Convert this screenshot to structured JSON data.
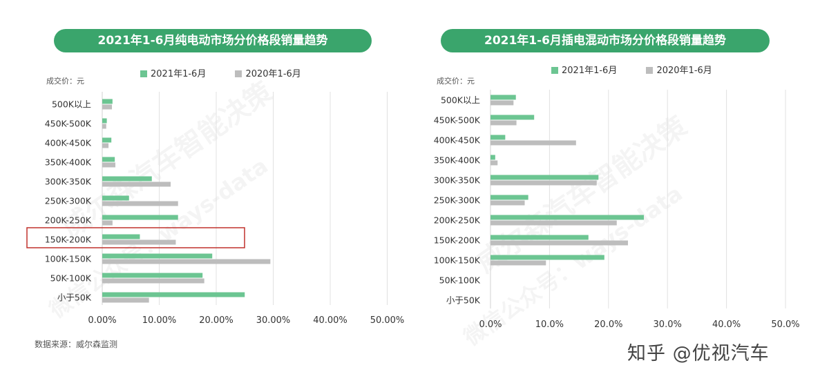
{
  "colors": {
    "accent": "#3aa56c",
    "series_2021": "#6cc592",
    "series_2020": "#bdbdbd",
    "highlight": "#c0302b",
    "grid": "#e0e0e0"
  },
  "charts": [
    {
      "title": "2021年1-6月纯电动市场分价格段销量趋势",
      "legend": [
        "2021年1-6月",
        "2020年1-6月"
      ],
      "unit_label": "成交价：元"
    },
    {
      "title": "2021年1-6月插电混动市场分价格段销量趋势",
      "legend": [
        "2021年1-6月",
        "2020年1-6月"
      ],
      "unit_label": "成交价：元"
    }
  ],
  "source": "数据来源：威尔森监测",
  "brand": "知乎 @优视汽车",
  "watermarks": [
    "威尔森汽车智能决策",
    "微信公众号：ways-data"
  ],
  "chart_data": [
    {
      "type": "bar",
      "orientation": "horizontal",
      "title": "2021年1-6月纯电动市场分价格段销量趋势",
      "ylabel": "成交价：元",
      "categories": [
        "500K以上",
        "450K-500K",
        "400K-450K",
        "350K-400K",
        "300K-350K",
        "250K-300K",
        "200K-250K",
        "150K-200K",
        "100K-150K",
        "50K-100K",
        "小于50K"
      ],
      "series": [
        {
          "name": "2021年1-6月",
          "color": "#6cc592",
          "values": [
            1.8,
            0.8,
            1.6,
            2.2,
            8.7,
            4.7,
            13.3,
            6.6,
            19.3,
            17.6,
            25.0
          ]
        },
        {
          "name": "2020年1-6月",
          "color": "#bdbdbd",
          "values": [
            1.7,
            0.7,
            1.1,
            2.3,
            12.0,
            13.3,
            1.8,
            12.9,
            29.5,
            17.9,
            8.2
          ]
        }
      ],
      "xlim": [
        0,
        50
      ],
      "xticks": [
        "0.00%",
        "10.00%",
        "20.00%",
        "30.00%",
        "40.00%",
        "50.00%"
      ],
      "grid": true,
      "legend_position": "top",
      "highlighted_category": "150K-200K"
    },
    {
      "type": "bar",
      "orientation": "horizontal",
      "title": "2021年1-6月插电混动市场分价格段销量趋势",
      "ylabel": "成交价：元",
      "categories": [
        "500K以上",
        "450K-500K",
        "400K-450K",
        "350K-400K",
        "300K-350K",
        "250K-300K",
        "200K-250K",
        "150K-200K",
        "100K-150K",
        "50K-100K",
        "小于50K"
      ],
      "series": [
        {
          "name": "2021年1-6月",
          "color": "#6cc592",
          "values": [
            4.3,
            7.4,
            2.5,
            0.8,
            18.3,
            6.4,
            26.0,
            16.6,
            19.3,
            0,
            0
          ]
        },
        {
          "name": "2020年1-6月",
          "color": "#bdbdbd",
          "values": [
            3.9,
            4.4,
            14.5,
            1.2,
            18.0,
            5.8,
            21.4,
            23.3,
            9.4,
            0,
            0
          ]
        }
      ],
      "xlim": [
        0,
        50
      ],
      "xticks": [
        "0.0%",
        "10.0%",
        "20.0%",
        "30.0%",
        "40.0%",
        "50.0%"
      ],
      "grid": true,
      "legend_position": "top"
    }
  ]
}
